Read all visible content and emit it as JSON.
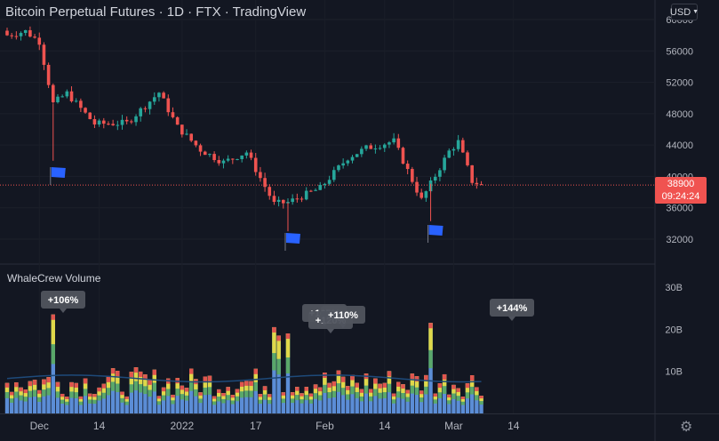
{
  "header": {
    "title": "Bitcoin Perpetual Futures · 1D · FTX · TradingView",
    "currency": "USD"
  },
  "price_scale": {
    "ticks": [
      "60000",
      "56000",
      "52000",
      "48000",
      "44000",
      "40000",
      "36000",
      "32000"
    ],
    "last_price": "38900",
    "countdown": "09:24:24"
  },
  "volume_pane": {
    "title": "WhaleCrew Volume",
    "ticks": [
      "30B",
      "20B",
      "10B"
    ],
    "callouts": [
      "+106%",
      "+165%",
      "+120%",
      "+110%",
      "+144%"
    ]
  },
  "time_axis": {
    "labels": [
      "Dec",
      "14",
      "2022",
      "17",
      "Feb",
      "14",
      "Mar",
      "14"
    ]
  },
  "colors": {
    "background": "#131722",
    "up": "#26a69a",
    "down": "#ef5350",
    "flag": "#2962ff",
    "volume_base": "#5b8dd6",
    "volume_avg_line": "#1e4a7a"
  },
  "icons": {
    "settings": "gear-icon",
    "currency_dropdown": "chevron-down-icon",
    "flag_marker": "flag-icon"
  },
  "chart_data": [
    {
      "type": "candlestick",
      "title": "",
      "ylim": [
        30000,
        61000
      ],
      "y_ticks": [
        60000,
        56000,
        52000,
        48000,
        44000,
        40000,
        36000,
        32000
      ],
      "x_labels": [
        "Dec",
        "14",
        "2022",
        "17",
        "Feb",
        "14",
        "Mar",
        "14"
      ],
      "last_price": 38900,
      "close_path": [
        {
          "date": "2021-11-24",
          "close": 58000
        },
        {
          "date": "2021-11-28",
          "close": 58500
        },
        {
          "date": "2021-12-01",
          "close": 57200
        },
        {
          "date": "2021-12-04",
          "close": 49300
        },
        {
          "date": "2021-12-07",
          "close": 50600
        },
        {
          "date": "2021-12-13",
          "close": 46700
        },
        {
          "date": "2021-12-20",
          "close": 46800
        },
        {
          "date": "2021-12-27",
          "close": 50700
        },
        {
          "date": "2021-12-31",
          "close": 46300
        },
        {
          "date": "2022-01-05",
          "close": 43400
        },
        {
          "date": "2022-01-10",
          "close": 41800
        },
        {
          "date": "2022-01-15",
          "close": 43100
        },
        {
          "date": "2022-01-21",
          "close": 36500
        },
        {
          "date": "2022-01-24",
          "close": 36700
        },
        {
          "date": "2022-01-31",
          "close": 38500
        },
        {
          "date": "2022-02-06",
          "close": 42400
        },
        {
          "date": "2022-02-10",
          "close": 43600
        },
        {
          "date": "2022-02-16",
          "close": 44500
        },
        {
          "date": "2022-02-22",
          "close": 37000
        },
        {
          "date": "2022-02-28",
          "close": 43200
        },
        {
          "date": "2022-03-02",
          "close": 44400
        },
        {
          "date": "2022-03-05",
          "close": 39400
        },
        {
          "date": "2022-03-07",
          "close": 38900
        }
      ]
    },
    {
      "type": "bar",
      "title": "WhaleCrew Volume",
      "ylim": [
        0,
        32
      ],
      "unit": "B",
      "y_ticks": [
        30,
        20,
        10
      ],
      "peaks": [
        {
          "date": "2021-12-04",
          "value": 23.5,
          "label": "+106%"
        },
        {
          "date": "2022-01-21",
          "value": 20.5,
          "label": "+165%"
        },
        {
          "date": "2022-01-22",
          "value": 18.5,
          "label": "+120%"
        },
        {
          "date": "2022-01-24",
          "value": 19.0,
          "label": "+110%"
        },
        {
          "date": "2022-02-24",
          "value": 21.5,
          "label": "+144%"
        }
      ]
    }
  ]
}
